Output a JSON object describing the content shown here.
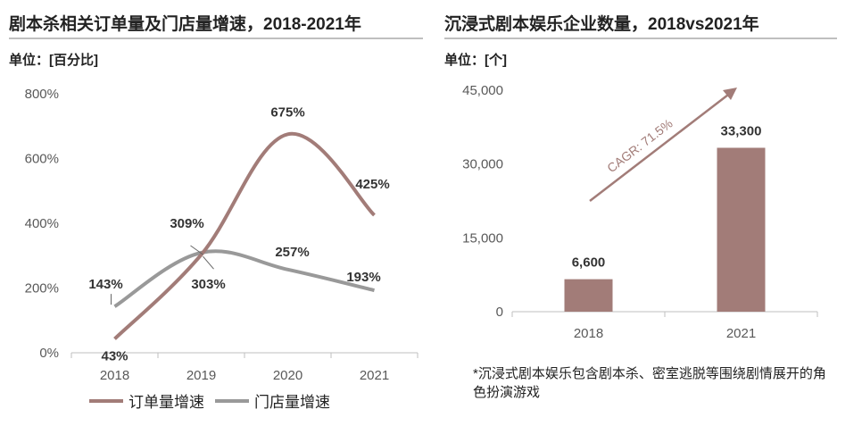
{
  "left_chart": {
    "title": "剧本杀相关订单量及门店量增速，2018-2021年",
    "unit": "单位：[百分比]",
    "legend": [
      {
        "name": "订单量增速",
        "color": "#a27c78"
      },
      {
        "name": "门店量增速",
        "color": "#999999"
      }
    ],
    "y_ticks": [
      "0%",
      "200%",
      "400%",
      "600%",
      "800%"
    ],
    "x_ticks": [
      "2018",
      "2019",
      "2020",
      "2021"
    ],
    "data_labels": {
      "orders": [
        "43%",
        "303%",
        "675%",
        "425%"
      ],
      "stores": [
        "143%",
        "309%",
        "257%",
        "193%"
      ]
    }
  },
  "right_chart": {
    "title": "沉浸式剧本娱乐企业数量，2018vs2021年",
    "unit": "单位：[个]",
    "y_ticks": [
      "0",
      "15,000",
      "30,000",
      "45,000"
    ],
    "x_ticks": [
      "2018",
      "2021"
    ],
    "bar_labels": [
      "6,600",
      "33,300"
    ],
    "cagr_label": "CAGR: 71.5%",
    "footnote": "*沉浸式剧本娱乐包含剧本杀、密室逃脱等围绕剧情展开的角色扮演游戏",
    "bar_color": "#a27c78"
  },
  "chart_data": [
    {
      "type": "line",
      "title": "剧本杀相关订单量及门店量增速，2018-2021年",
      "ylabel": "单位：[百分比]",
      "categories": [
        "2018",
        "2019",
        "2020",
        "2021"
      ],
      "series": [
        {
          "name": "订单量增速",
          "values": [
            43,
            303,
            675,
            425
          ],
          "color": "#a27c78"
        },
        {
          "name": "门店量增速",
          "values": [
            143,
            309,
            257,
            193
          ],
          "color": "#999999"
        }
      ],
      "ylim": [
        0,
        800
      ],
      "grid": false,
      "legend": "bottom"
    },
    {
      "type": "bar",
      "title": "沉浸式剧本娱乐企业数量，2018vs2021年",
      "ylabel": "单位：[个]",
      "categories": [
        "2018",
        "2021"
      ],
      "values": [
        6600,
        33300
      ],
      "ylim": [
        0,
        45000
      ],
      "annotation": "CAGR: 71.5%",
      "grid": false
    }
  ]
}
